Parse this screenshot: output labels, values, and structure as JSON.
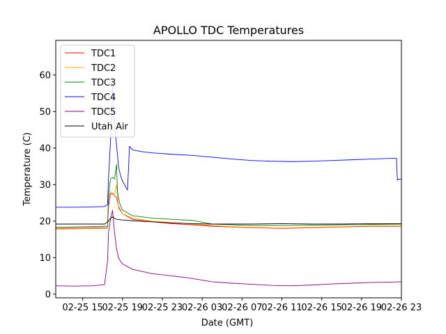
{
  "chart_data": {
    "type": "line",
    "title": "APOLLO TDC Temperatures",
    "xlabel": "Date (GMT)",
    "ylabel": "Temperature (C)",
    "x_unit": "hours since 02-25 00:00 GMT",
    "xlim": [
      12.3,
      47.0
    ],
    "ylim": [
      -1,
      69.5
    ],
    "x_ticks": [
      {
        "value": 15,
        "label": "02-25 15"
      },
      {
        "value": 19,
        "label": "02-25 19"
      },
      {
        "value": 23,
        "label": "02-25 23"
      },
      {
        "value": 27,
        "label": "02-26 03"
      },
      {
        "value": 31,
        "label": "02-26 07"
      },
      {
        "value": 35,
        "label": "02-26 11"
      },
      {
        "value": 39,
        "label": "02-26 15"
      },
      {
        "value": 43,
        "label": "02-26 19"
      },
      {
        "value": 47,
        "label": "02-26 23"
      }
    ],
    "y_ticks": [
      {
        "value": 0,
        "label": "0"
      },
      {
        "value": 10,
        "label": "10"
      },
      {
        "value": 20,
        "label": "20"
      },
      {
        "value": 30,
        "label": "30"
      },
      {
        "value": 40,
        "label": "40"
      },
      {
        "value": 50,
        "label": "50"
      },
      {
        "value": 60,
        "label": "60"
      }
    ],
    "grid": false,
    "legend_position": "top-left",
    "legend": [
      "TDC1",
      "TDC2",
      "TDC3",
      "TDC4",
      "TDC5",
      "Utah Air"
    ],
    "series": [
      {
        "name": "TDC1",
        "color": "#ff0000",
        "x": [
          12.3,
          17.5,
          17.6,
          17.7,
          17.8,
          18.0,
          18.2,
          18.4,
          18.6,
          19.0,
          20.0,
          22.0,
          24.0,
          26.0,
          28.0,
          30.0,
          32.0,
          35.0,
          38.0,
          41.0,
          44.0,
          47.0
        ],
        "y": [
          18.0,
          18.2,
          24.0,
          26.0,
          27.5,
          27.5,
          27.0,
          26.5,
          24.0,
          22.0,
          20.5,
          19.8,
          19.3,
          19.0,
          18.6,
          18.4,
          18.2,
          18.0,
          18.2,
          18.4,
          18.6,
          18.6
        ]
      },
      {
        "name": "TDC2",
        "color": "#ffa500",
        "x": [
          12.3,
          17.5,
          17.6,
          17.7,
          17.8,
          18.0,
          18.2,
          18.4,
          18.6,
          19.0,
          20.0,
          22.0,
          24.0,
          26.0,
          28.0,
          30.0,
          32.0,
          35.0,
          38.0,
          41.0,
          44.0,
          47.0
        ],
        "y": [
          17.8,
          18.0,
          26.0,
          27.5,
          28.0,
          27.6,
          27.5,
          30.0,
          23.5,
          22.0,
          20.8,
          20.0,
          19.6,
          19.2,
          18.8,
          18.5,
          18.3,
          18.1,
          18.3,
          18.5,
          18.7,
          18.7
        ]
      },
      {
        "name": "TDC3",
        "color": "#008000",
        "x": [
          12.3,
          17.5,
          17.6,
          17.7,
          17.8,
          18.0,
          18.2,
          18.4,
          18.5,
          18.7,
          19.0,
          20.0,
          22.0,
          24.0,
          26.0,
          28.0,
          30.0,
          32.0,
          35.0,
          38.0,
          41.0,
          44.0,
          47.0
        ],
        "y": [
          18.3,
          18.6,
          27.0,
          29.5,
          31.5,
          32.0,
          31.5,
          35.5,
          28.0,
          25.0,
          23.0,
          21.5,
          20.8,
          20.5,
          20.2,
          19.2,
          19.0,
          18.8,
          18.8,
          18.9,
          19.0,
          19.1,
          19.2
        ]
      },
      {
        "name": "TDC4",
        "color": "#0000ff",
        "x": [
          12.3,
          14.0,
          16.0,
          17.2,
          17.5,
          17.6,
          17.8,
          18.0,
          18.2,
          18.4,
          18.6,
          18.8,
          19.0,
          19.5,
          19.6,
          19.7,
          20.0,
          21.0,
          22.0,
          24.0,
          26.0,
          28.0,
          30.0,
          32.0,
          34.0,
          36.0,
          38.0,
          40.0,
          42.0,
          44.0,
          46.0,
          46.5,
          46.6,
          46.7,
          47.0
        ],
        "y": [
          23.8,
          23.8,
          23.9,
          24.0,
          24.5,
          32.0,
          42.0,
          57.0,
          46.0,
          41.0,
          35.0,
          32.5,
          31.0,
          28.5,
          34.0,
          40.5,
          39.5,
          39.0,
          38.7,
          38.3,
          38.0,
          37.5,
          37.0,
          36.6,
          36.4,
          36.3,
          36.4,
          36.6,
          36.8,
          37.0,
          37.2,
          37.2,
          31.2,
          31.5,
          31.5
        ]
      },
      {
        "name": "TDC5",
        "color": "#800080",
        "x": [
          12.3,
          14.0,
          16.0,
          17.2,
          17.5,
          17.6,
          17.8,
          18.0,
          18.2,
          18.4,
          18.6,
          18.8,
          19.0,
          20.0,
          22.0,
          24.0,
          26.0,
          28.0,
          30.0,
          32.0,
          34.0,
          36.0,
          38.0,
          40.0,
          42.0,
          44.0,
          46.0,
          47.0
        ],
        "y": [
          2.3,
          2.2,
          2.3,
          2.6,
          9.0,
          17.0,
          20.5,
          23.0,
          17.0,
          12.5,
          10.0,
          9.0,
          8.3,
          6.8,
          5.6,
          5.0,
          4.3,
          3.4,
          3.0,
          2.7,
          2.4,
          2.3,
          2.5,
          2.8,
          3.0,
          3.2,
          3.3,
          3.4
        ]
      },
      {
        "name": "Utah Air",
        "color": "#000000",
        "x": [
          12.3,
          14.0,
          16.0,
          17.2,
          17.6,
          17.8,
          18.0,
          18.2,
          18.4,
          19.0,
          20.0,
          22.0,
          24.0,
          26.0,
          28.0,
          30.0,
          32.0,
          35.0,
          38.0,
          41.0,
          44.0,
          47.0
        ],
        "y": [
          19.2,
          19.2,
          19.2,
          19.2,
          20.0,
          20.8,
          21.2,
          20.8,
          20.5,
          20.3,
          20.1,
          19.8,
          19.5,
          19.3,
          19.2,
          19.2,
          19.2,
          19.3,
          19.2,
          19.2,
          19.3,
          19.3
        ]
      }
    ]
  }
}
